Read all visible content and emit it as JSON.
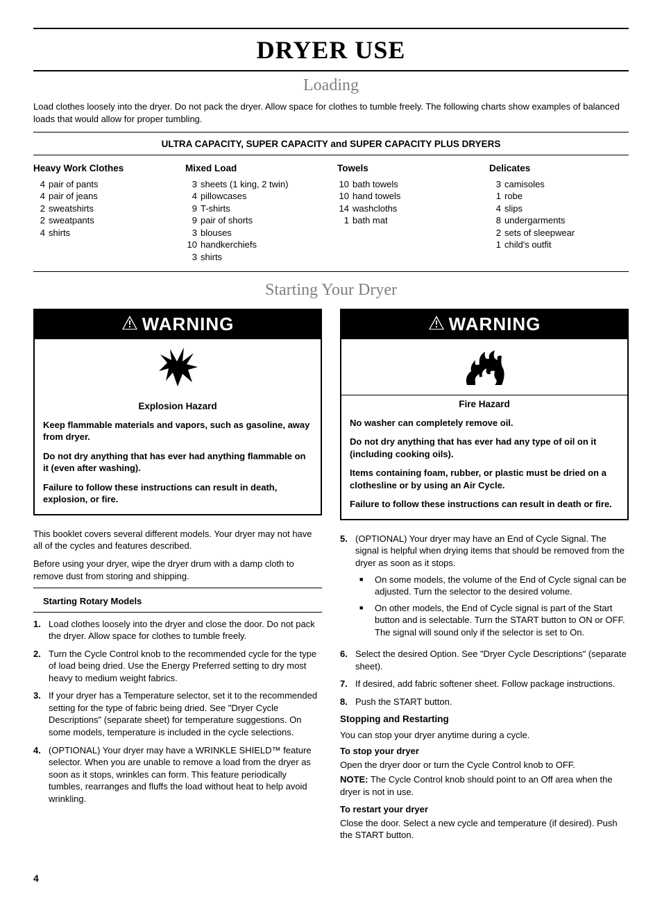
{
  "page_number": "4",
  "main_title": "DRYER USE",
  "loading": {
    "title": "Loading",
    "intro": "Load clothes loosely into the dryer. Do not pack the dryer. Allow space for clothes to tumble freely. The following charts show examples of balanced loads that would allow for proper tumbling.",
    "capacity_header": "ULTRA CAPACITY, SUPER CAPACITY and SUPER CAPACITY PLUS DRYERS",
    "columns": [
      {
        "title": "Heavy Work Clothes",
        "items": [
          {
            "q": "4",
            "t": "pair of pants"
          },
          {
            "q": "4",
            "t": "pair of jeans"
          },
          {
            "q": "2",
            "t": "sweatshirts"
          },
          {
            "q": "2",
            "t": "sweatpants"
          },
          {
            "q": "4",
            "t": "shirts"
          }
        ]
      },
      {
        "title": "Mixed Load",
        "items": [
          {
            "q": "3",
            "t": "sheets (1 king, 2 twin)"
          },
          {
            "q": "4",
            "t": "pillowcases"
          },
          {
            "q": "9",
            "t": "T-shirts"
          },
          {
            "q": "9",
            "t": "pair of shorts"
          },
          {
            "q": "3",
            "t": "blouses"
          },
          {
            "q": "10",
            "t": "handkerchiefs"
          },
          {
            "q": "3",
            "t": "shirts"
          }
        ]
      },
      {
        "title": "Towels",
        "items": [
          {
            "q": "10",
            "t": "bath towels"
          },
          {
            "q": "10",
            "t": "hand towels"
          },
          {
            "q": "14",
            "t": "washcloths"
          },
          {
            "q": "1",
            "t": "bath mat"
          }
        ]
      },
      {
        "title": "Delicates",
        "items": [
          {
            "q": "3",
            "t": "camisoles"
          },
          {
            "q": "1",
            "t": "robe"
          },
          {
            "q": "4",
            "t": "slips"
          },
          {
            "q": "8",
            "t": "undergarments"
          },
          {
            "q": "2",
            "t": "sets of sleepwear"
          },
          {
            "q": "1",
            "t": "child's outfit"
          }
        ]
      }
    ]
  },
  "starting": {
    "title": "Starting Your Dryer",
    "warning_label": "WARNING",
    "explosion": {
      "hazard": "Explosion Hazard",
      "lines": [
        "Keep flammable materials and vapors, such as gasoline, away from dryer.",
        "Do not dry anything that has ever had anything flammable on it (even after washing).",
        "Failure to follow these instructions can result in death, explosion, or fire."
      ]
    },
    "fire": {
      "hazard": "Fire Hazard",
      "lines": [
        "No washer can completely remove oil.",
        "Do not dry anything that has ever had any type of oil on it (including cooking oils).",
        "Items containing foam, rubber, or plastic must be dried on a clothesline or by using an Air Cycle.",
        "Failure to follow these instructions can result in death or fire."
      ]
    },
    "left": {
      "p1": "This booklet covers several different models. Your dryer may not have all of the cycles and features described.",
      "p2": "Before using your dryer, wipe the dryer drum with a damp cloth to remove dust from storing and shipping.",
      "rotary_label": "Starting Rotary Models",
      "steps": [
        "Load clothes loosely into the dryer and close the door. Do not pack the dryer. Allow space for clothes to tumble freely.",
        "Turn the Cycle Control knob to the recommended cycle for the type of load being dried. Use the Energy Preferred setting to dry most heavy to medium weight fabrics.",
        "If your dryer has a Temperature selector, set it to the recommended setting for the type of fabric being dried. See \"Dryer Cycle Descriptions\" (separate sheet) for temperature suggestions. On some models, temperature is included in the cycle selections.",
        "(OPTIONAL) Your dryer may have a WRINKLE SHIELD™ feature selector. When you are unable to remove a load from the dryer as soon as it stops, wrinkles can form. This feature periodically tumbles, rearranges and fluffs the load without heat to help avoid wrinkling."
      ]
    },
    "right": {
      "step5_text": "(OPTIONAL) Your dryer may have an End of Cycle Signal. The signal is helpful when drying items that should be removed from the dryer as soon as it stops.",
      "step5_bullets": [
        "On some models, the volume of the End of Cycle signal can be adjusted. Turn the selector to the desired volume.",
        "On other models, the End of Cycle signal is part of the Start button and is selectable. Turn the START button to ON or OFF. The signal will sound only if the selector is set to On."
      ],
      "step6": "Select the desired Option. See \"Dryer Cycle Descriptions\" (separate sheet).",
      "step7": "If desired, add fabric softener sheet. Follow package instructions.",
      "step8": "Push the START button.",
      "stopping_heading": "Stopping and Restarting",
      "stopping_intro": "You can stop your dryer anytime during a cycle.",
      "to_stop_label": "To stop your dryer",
      "to_stop_text": "Open the dryer door or turn the Cycle Control knob to OFF.",
      "note_label": "NOTE:",
      "note_text": " The Cycle Control knob should point to an Off area when the dryer is not in use.",
      "to_restart_label": "To restart your dryer",
      "to_restart_text": "Close the door. Select a new cycle and temperature (if desired). Push the START button."
    }
  },
  "colors": {
    "text": "#000000",
    "background": "#ffffff",
    "subtitle_gray": "#808080",
    "warning_bg": "#000000",
    "warning_fg": "#ffffff"
  }
}
